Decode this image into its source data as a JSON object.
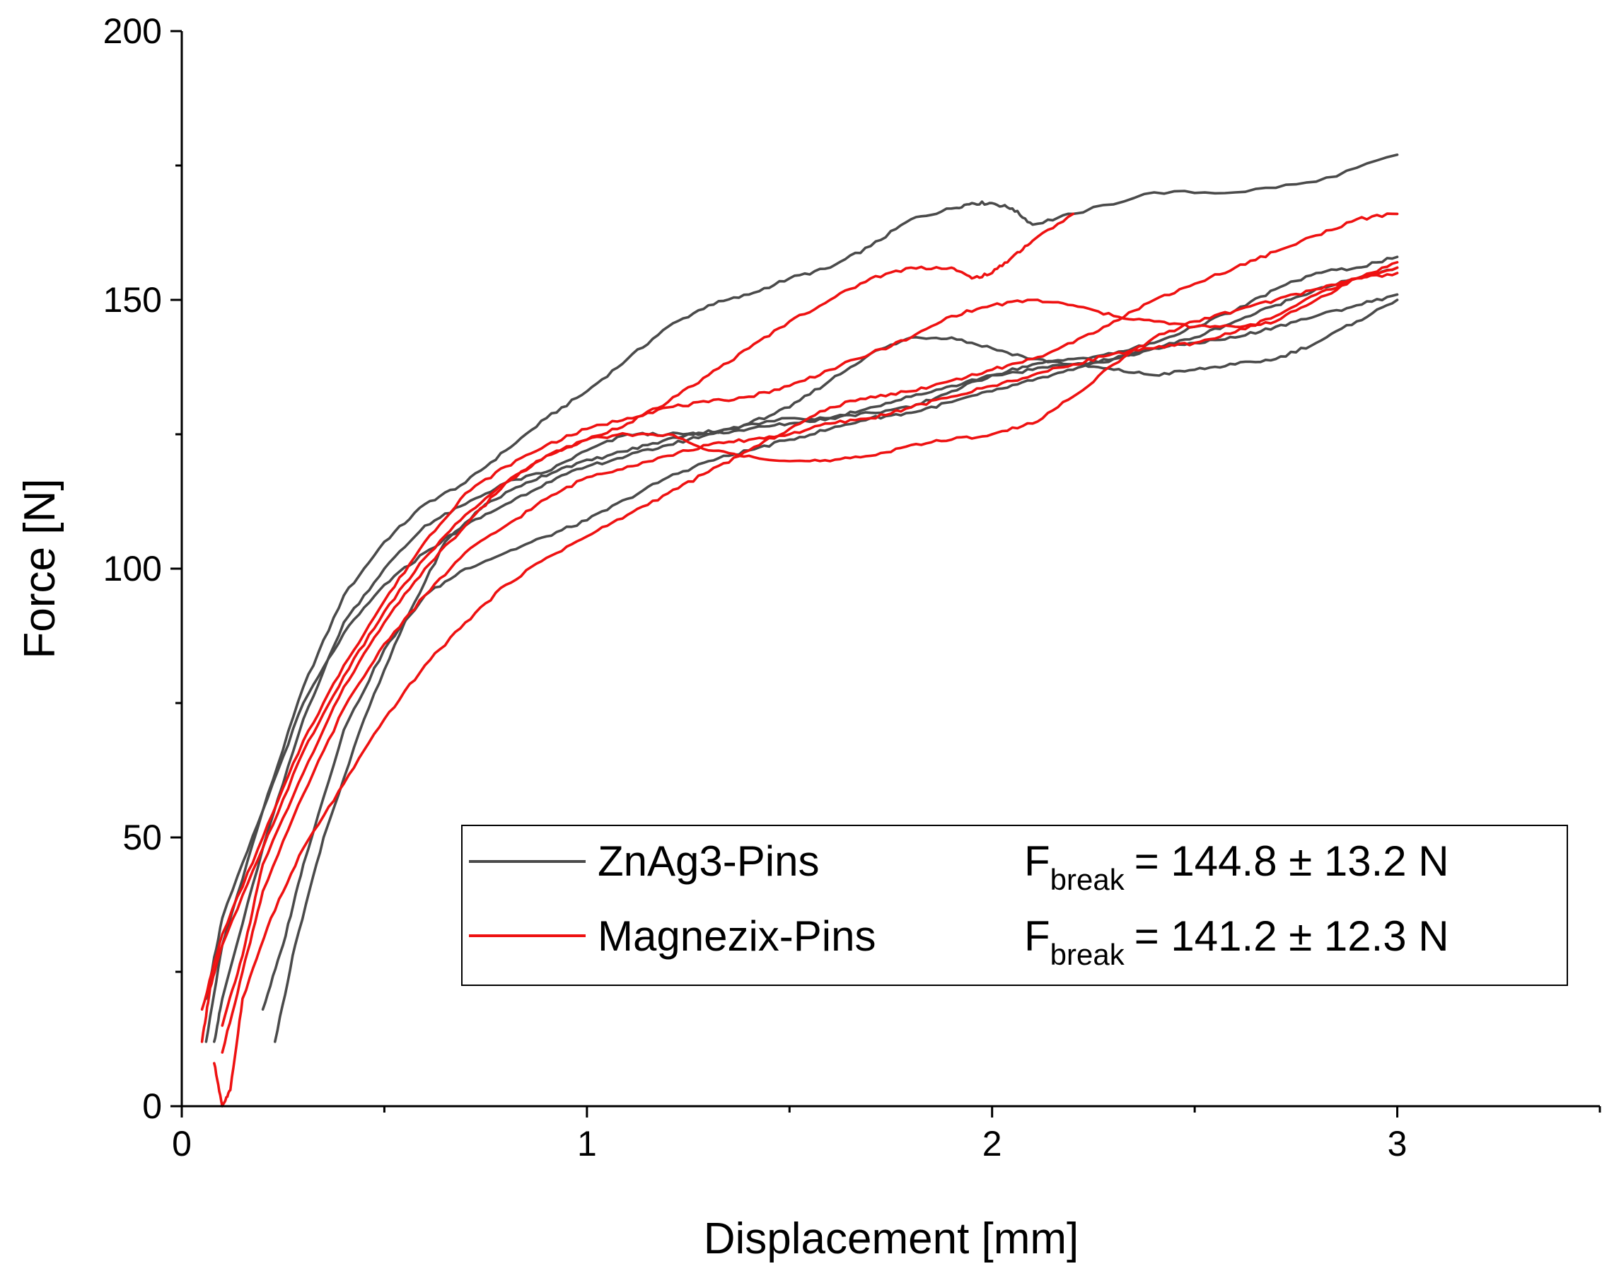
{
  "chart_data": {
    "type": "line",
    "title": "",
    "xlabel": "Displacement [mm]",
    "ylabel": "Force [N]",
    "xlim": [
      0,
      3.5
    ],
    "ylim": [
      0,
      200
    ],
    "x_ticks": [
      0,
      1,
      2,
      3
    ],
    "x_minor_ticks": [
      0.5,
      1.5,
      2.5,
      3.5
    ],
    "y_ticks": [
      0,
      50,
      100,
      150,
      200
    ],
    "y_minor_ticks": [
      25,
      75,
      125,
      175
    ],
    "grid": false,
    "legend_position": "bottom-right",
    "colors": {
      "ZnAg3-Pins": "#4a4a4a",
      "Magnezix-Pins": "#ee1111"
    },
    "legend": [
      {
        "name": "ZnAg3-Pins",
        "color": "#4a4a4a",
        "stat_symbol": "F",
        "stat_subscript": "break",
        "stat_value": "= 144.8 ± 13.2 N"
      },
      {
        "name": "Magnezix-Pins",
        "color": "#ee1111",
        "stat_symbol": "F",
        "stat_subscript": "break",
        "stat_value": "= 141.2 ± 12.3 N"
      }
    ],
    "series": [
      {
        "name": "ZnAg3-Pins",
        "trial": 1,
        "color": "#4a4a4a",
        "points": [
          [
            0.06,
            12
          ],
          [
            0.1,
            30
          ],
          [
            0.2,
            55
          ],
          [
            0.3,
            78
          ],
          [
            0.4,
            95
          ],
          [
            0.5,
            105
          ],
          [
            0.6,
            112
          ],
          [
            0.7,
            116
          ],
          [
            0.8,
            122
          ],
          [
            0.9,
            128
          ],
          [
            1.0,
            133
          ],
          [
            1.1,
            139
          ],
          [
            1.2,
            145
          ],
          [
            1.3,
            149
          ],
          [
            1.4,
            151
          ],
          [
            1.5,
            154
          ],
          [
            1.6,
            156
          ],
          [
            1.7,
            160
          ],
          [
            1.8,
            165
          ],
          [
            1.9,
            167
          ],
          [
            1.95,
            168
          ],
          [
            2.0,
            168
          ],
          [
            2.05,
            167
          ],
          [
            2.1,
            164
          ],
          [
            2.2,
            166
          ],
          [
            2.4,
            170
          ],
          [
            2.6,
            170
          ],
          [
            2.8,
            172
          ],
          [
            3.0,
            177
          ]
        ]
      },
      {
        "name": "ZnAg3-Pins",
        "trial": 2,
        "color": "#4a4a4a",
        "points": [
          [
            0.08,
            12
          ],
          [
            0.1,
            20
          ],
          [
            0.2,
            48
          ],
          [
            0.3,
            72
          ],
          [
            0.4,
            90
          ],
          [
            0.5,
            100
          ],
          [
            0.6,
            108
          ],
          [
            0.7,
            112
          ],
          [
            0.8,
            116
          ],
          [
            0.9,
            118
          ],
          [
            1.0,
            122
          ],
          [
            1.1,
            125
          ],
          [
            1.2,
            125
          ],
          [
            1.3,
            125
          ],
          [
            1.4,
            127
          ],
          [
            1.5,
            130
          ],
          [
            1.6,
            135
          ],
          [
            1.7,
            140
          ],
          [
            1.8,
            143
          ],
          [
            1.9,
            143
          ],
          [
            2.0,
            141
          ],
          [
            2.1,
            139
          ],
          [
            2.2,
            138
          ],
          [
            2.3,
            137
          ],
          [
            2.4,
            136
          ],
          [
            2.5,
            137
          ],
          [
            2.6,
            138
          ],
          [
            2.7,
            139
          ],
          [
            2.8,
            142
          ],
          [
            2.9,
            146
          ],
          [
            3.0,
            150
          ]
        ]
      },
      {
        "name": "ZnAg3-Pins",
        "trial": 3,
        "color": "#4a4a4a",
        "points": [
          [
            0.2,
            18
          ],
          [
            0.25,
            30
          ],
          [
            0.3,
            45
          ],
          [
            0.4,
            70
          ],
          [
            0.5,
            85
          ],
          [
            0.6,
            95
          ],
          [
            0.7,
            100
          ],
          [
            0.8,
            103
          ],
          [
            0.9,
            106
          ],
          [
            1.0,
            109
          ],
          [
            1.1,
            113
          ],
          [
            1.2,
            117
          ],
          [
            1.3,
            120
          ],
          [
            1.4,
            122
          ],
          [
            1.5,
            124
          ],
          [
            1.6,
            126
          ],
          [
            1.7,
            128
          ],
          [
            1.8,
            129
          ],
          [
            1.9,
            131
          ],
          [
            2.0,
            133
          ],
          [
            2.1,
            135
          ],
          [
            2.2,
            137
          ],
          [
            2.3,
            139
          ],
          [
            2.4,
            141
          ],
          [
            2.5,
            142
          ],
          [
            2.6,
            143
          ],
          [
            2.7,
            145
          ],
          [
            2.8,
            147
          ],
          [
            2.9,
            149
          ],
          [
            3.0,
            151
          ]
        ]
      },
      {
        "name": "ZnAg3-Pins",
        "trial": 4,
        "color": "#4a4a4a",
        "points": [
          [
            0.23,
            12
          ],
          [
            0.28,
            30
          ],
          [
            0.35,
            50
          ],
          [
            0.45,
            72
          ],
          [
            0.55,
            90
          ],
          [
            0.65,
            105
          ],
          [
            0.75,
            112
          ],
          [
            0.85,
            116
          ],
          [
            0.95,
            119
          ],
          [
            1.05,
            121
          ],
          [
            1.15,
            123
          ],
          [
            1.25,
            125
          ],
          [
            1.35,
            126
          ],
          [
            1.5,
            128
          ],
          [
            1.6,
            128
          ],
          [
            1.7,
            129
          ],
          [
            1.8,
            130
          ],
          [
            1.9,
            133
          ],
          [
            2.0,
            136
          ],
          [
            2.1,
            138
          ],
          [
            2.2,
            139
          ],
          [
            2.3,
            140
          ],
          [
            2.4,
            142
          ],
          [
            2.5,
            145
          ],
          [
            2.6,
            148
          ],
          [
            2.7,
            152
          ],
          [
            2.8,
            155
          ],
          [
            2.9,
            156
          ],
          [
            3.0,
            158
          ]
        ]
      },
      {
        "name": "ZnAg3-Pins",
        "trial": 5,
        "color": "#4a4a4a",
        "points": [
          [
            0.06,
            20
          ],
          [
            0.1,
            35
          ],
          [
            0.2,
            55
          ],
          [
            0.3,
            75
          ],
          [
            0.4,
            88
          ],
          [
            0.5,
            97
          ],
          [
            0.6,
            103
          ],
          [
            0.7,
            108
          ],
          [
            0.8,
            112
          ],
          [
            0.9,
            116
          ],
          [
            1.0,
            119
          ],
          [
            1.1,
            121
          ],
          [
            1.2,
            123
          ],
          [
            1.3,
            125
          ],
          [
            1.4,
            126
          ],
          [
            1.5,
            127
          ],
          [
            1.6,
            128
          ],
          [
            1.7,
            130
          ],
          [
            1.8,
            132
          ],
          [
            1.9,
            134
          ],
          [
            2.0,
            136
          ],
          [
            2.1,
            137
          ],
          [
            2.2,
            138
          ],
          [
            2.3,
            139
          ],
          [
            2.4,
            141
          ],
          [
            2.5,
            143
          ],
          [
            2.6,
            146
          ],
          [
            2.7,
            149
          ],
          [
            2.8,
            152
          ],
          [
            2.9,
            154
          ],
          [
            3.0,
            156
          ]
        ]
      },
      {
        "name": "Magnezix-Pins",
        "trial": 1,
        "color": "#ee1111",
        "points": [
          [
            0.05,
            12
          ],
          [
            0.07,
            22
          ],
          [
            0.1,
            30
          ],
          [
            0.2,
            48
          ],
          [
            0.3,
            66
          ],
          [
            0.4,
            80
          ],
          [
            0.5,
            92
          ],
          [
            0.6,
            102
          ],
          [
            0.7,
            110
          ],
          [
            0.8,
            116
          ],
          [
            0.9,
            121
          ],
          [
            1.0,
            124
          ],
          [
            1.1,
            127
          ],
          [
            1.2,
            131
          ],
          [
            1.3,
            136
          ],
          [
            1.4,
            141
          ],
          [
            1.5,
            146
          ],
          [
            1.6,
            150
          ],
          [
            1.7,
            154
          ],
          [
            1.8,
            156
          ],
          [
            1.9,
            156
          ],
          [
            1.95,
            154
          ],
          [
            2.0,
            155
          ],
          [
            2.05,
            158
          ],
          [
            2.1,
            161
          ],
          [
            2.2,
            166
          ]
        ]
      },
      {
        "name": "Magnezix-Pins",
        "trial": 2,
        "color": "#ee1111",
        "points": [
          [
            0.05,
            18
          ],
          [
            0.1,
            32
          ],
          [
            0.2,
            50
          ],
          [
            0.3,
            68
          ],
          [
            0.4,
            82
          ],
          [
            0.5,
            94
          ],
          [
            0.6,
            105
          ],
          [
            0.7,
            114
          ],
          [
            0.8,
            119
          ],
          [
            0.9,
            123
          ],
          [
            1.0,
            126
          ],
          [
            1.1,
            128
          ],
          [
            1.2,
            130
          ],
          [
            1.3,
            131
          ],
          [
            1.4,
            132
          ],
          [
            1.5,
            134
          ],
          [
            1.6,
            137
          ],
          [
            1.7,
            140
          ],
          [
            1.8,
            143
          ],
          [
            1.9,
            147
          ],
          [
            2.0,
            149
          ],
          [
            2.1,
            150
          ],
          [
            2.2,
            149
          ],
          [
            2.3,
            147
          ],
          [
            2.4,
            146
          ],
          [
            2.5,
            145
          ],
          [
            2.6,
            145
          ],
          [
            2.7,
            146
          ],
          [
            2.8,
            150
          ],
          [
            2.9,
            154
          ],
          [
            3.0,
            157
          ]
        ]
      },
      {
        "name": "Magnezix-Pins",
        "trial": 3,
        "color": "#ee1111",
        "points": [
          [
            0.1,
            10
          ],
          [
            0.15,
            25
          ],
          [
            0.2,
            40
          ],
          [
            0.3,
            58
          ],
          [
            0.4,
            74
          ],
          [
            0.5,
            86
          ],
          [
            0.6,
            95
          ],
          [
            0.7,
            103
          ],
          [
            0.8,
            108
          ],
          [
            0.9,
            113
          ],
          [
            1.0,
            117
          ],
          [
            1.1,
            119
          ],
          [
            1.2,
            121
          ],
          [
            1.3,
            123
          ],
          [
            1.4,
            124
          ],
          [
            1.5,
            125
          ],
          [
            1.6,
            127
          ],
          [
            1.7,
            128
          ],
          [
            1.8,
            130
          ],
          [
            1.9,
            132
          ],
          [
            2.0,
            134
          ],
          [
            2.1,
            136
          ],
          [
            2.2,
            138
          ],
          [
            2.3,
            140
          ],
          [
            2.4,
            141
          ],
          [
            2.5,
            142
          ],
          [
            2.6,
            144
          ],
          [
            2.7,
            147
          ],
          [
            2.8,
            151
          ],
          [
            2.9,
            154
          ],
          [
            3.0,
            156
          ]
        ]
      },
      {
        "name": "Magnezix-Pins",
        "trial": 4,
        "color": "#ee1111",
        "points": [
          [
            0.08,
            8
          ],
          [
            0.1,
            0
          ],
          [
            0.12,
            3
          ],
          [
            0.15,
            20
          ],
          [
            0.22,
            35
          ],
          [
            0.3,
            48
          ],
          [
            0.4,
            60
          ],
          [
            0.5,
            72
          ],
          [
            0.6,
            82
          ],
          [
            0.7,
            90
          ],
          [
            0.8,
            97
          ],
          [
            0.9,
            102
          ],
          [
            1.0,
            106
          ],
          [
            1.1,
            110
          ],
          [
            1.2,
            114
          ],
          [
            1.3,
            118
          ],
          [
            1.4,
            122
          ],
          [
            1.5,
            126
          ],
          [
            1.6,
            130
          ],
          [
            1.7,
            132
          ],
          [
            1.8,
            133
          ],
          [
            1.9,
            135
          ],
          [
            2.0,
            137
          ],
          [
            2.1,
            139
          ],
          [
            2.2,
            142
          ],
          [
            2.3,
            146
          ],
          [
            2.4,
            150
          ],
          [
            2.5,
            153
          ],
          [
            2.6,
            156
          ],
          [
            2.7,
            159
          ],
          [
            2.8,
            162
          ],
          [
            2.9,
            165
          ],
          [
            3.0,
            166
          ]
        ]
      },
      {
        "name": "Magnezix-Pins",
        "trial": 5,
        "color": "#ee1111",
        "points": [
          [
            0.1,
            15
          ],
          [
            0.15,
            28
          ],
          [
            0.2,
            45
          ],
          [
            0.3,
            62
          ],
          [
            0.4,
            78
          ],
          [
            0.5,
            90
          ],
          [
            0.6,
            100
          ],
          [
            0.7,
            108
          ],
          [
            0.8,
            116
          ],
          [
            0.9,
            121
          ],
          [
            1.0,
            124
          ],
          [
            1.1,
            125
          ],
          [
            1.2,
            125
          ],
          [
            1.3,
            122
          ],
          [
            1.4,
            121
          ],
          [
            1.5,
            120
          ],
          [
            1.6,
            120
          ],
          [
            1.7,
            121
          ],
          [
            1.8,
            123
          ],
          [
            1.9,
            124
          ],
          [
            2.0,
            125
          ],
          [
            2.1,
            127
          ],
          [
            2.2,
            132
          ],
          [
            2.3,
            138
          ],
          [
            2.4,
            143
          ],
          [
            2.5,
            146
          ],
          [
            2.6,
            148
          ],
          [
            2.7,
            150
          ],
          [
            2.8,
            152
          ],
          [
            2.9,
            154
          ],
          [
            3.0,
            155
          ]
        ]
      }
    ]
  }
}
